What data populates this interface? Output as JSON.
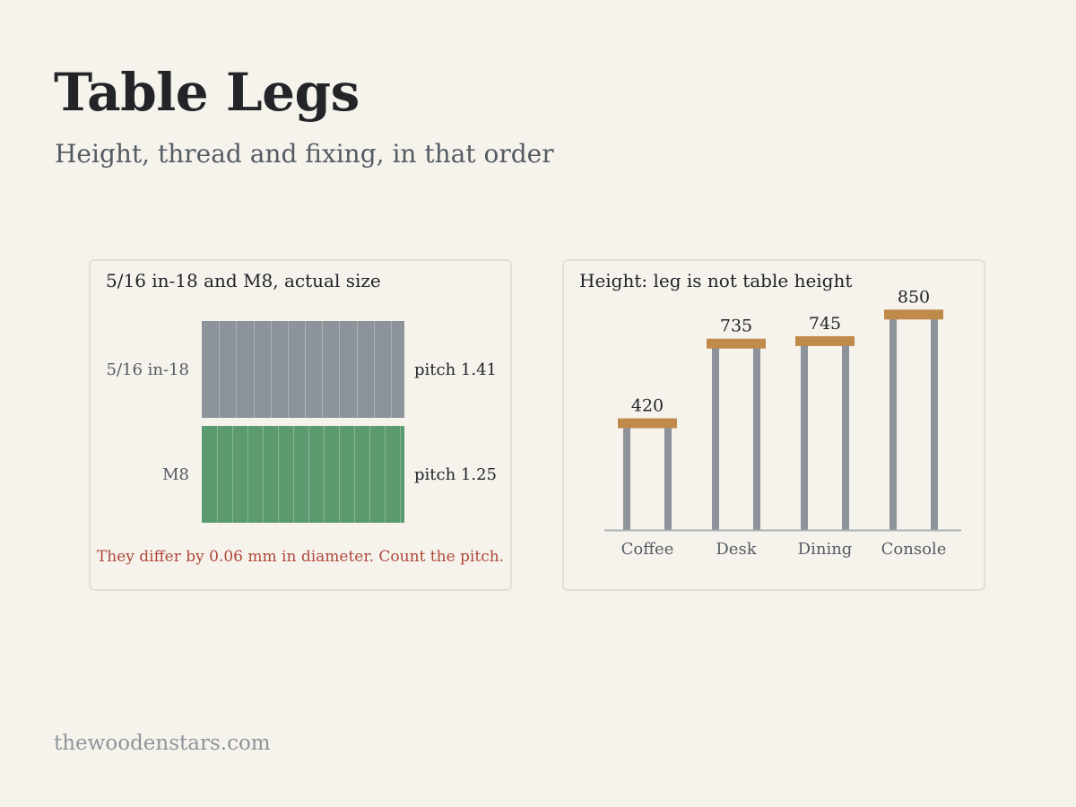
{
  "page": {
    "title": "Table Legs",
    "subtitle": "Height, thread and fixing, in that order",
    "footer": "thewoodenstars.com"
  },
  "thread_panel": {
    "title": "5/16 in-18 and M8, actual size",
    "threads": [
      {
        "name": "5/16 in-18",
        "pitch_label": "pitch 1.41",
        "pitch_mm": 1.41,
        "color": "#8c939a"
      },
      {
        "name": "M8",
        "pitch_label": "pitch 1.25",
        "pitch_mm": 1.25,
        "color": "#5a9a6e"
      }
    ],
    "note": "They differ by 0.06 mm in diameter. Count the pitch."
  },
  "height_panel": {
    "title": "Height: leg is not table height"
  },
  "colors": {
    "background": "#f6f3ed",
    "leg": "#8c939a",
    "tabletop": "#c08a4b",
    "note": "#b0473a",
    "baseline": "#a9b0b3"
  },
  "chart_data": {
    "type": "bar",
    "categories": [
      "Coffee",
      "Desk",
      "Dining",
      "Console"
    ],
    "values": [
      420,
      735,
      745,
      850
    ],
    "ylim": [
      0,
      900
    ]
  }
}
